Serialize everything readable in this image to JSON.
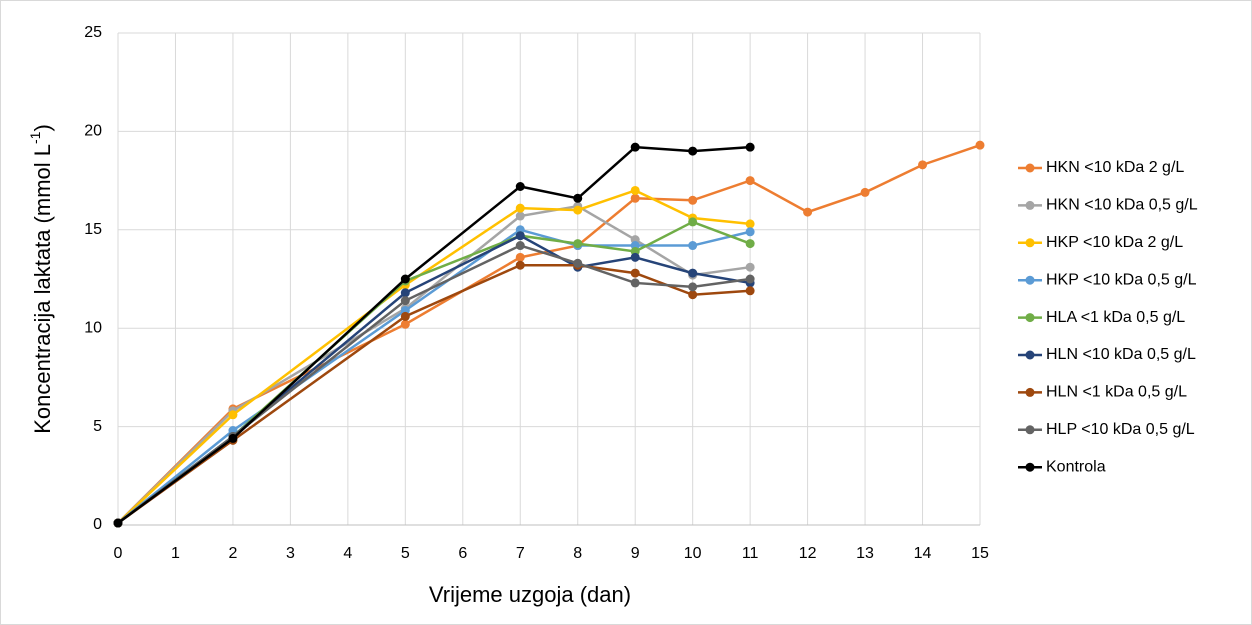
{
  "chart_data": {
    "type": "line",
    "xlabel": "Vrijeme uzgoja (dan)",
    "ylabel": [
      "Koncentracija laktata (mmol L",
      "-1",
      ")"
    ],
    "x": [
      0,
      2,
      5,
      7,
      8,
      9,
      10,
      11,
      12,
      13,
      14,
      15
    ],
    "xlim": [
      0,
      15
    ],
    "xticks": [
      0,
      1,
      2,
      3,
      4,
      5,
      6,
      7,
      8,
      9,
      10,
      11,
      12,
      13,
      14,
      15
    ],
    "ylim": [
      0,
      25
    ],
    "yticks": [
      0,
      5,
      10,
      15,
      20,
      25
    ],
    "grid": true,
    "legend": "right",
    "series": [
      {
        "name": "HKN <10 kDa 2 g/L",
        "color": "#ED7D31",
        "values": [
          0.1,
          5.9,
          10.2,
          13.6,
          14.2,
          16.6,
          16.5,
          17.5,
          15.9,
          16.9,
          18.3,
          19.3
        ]
      },
      {
        "name": "HKN <10 kDa 0,5 g/L",
        "color": "#A5A5A5",
        "values": [
          0.1,
          5.8,
          11.0,
          15.7,
          16.2,
          14.5,
          12.7,
          13.1,
          null,
          null,
          null,
          null
        ]
      },
      {
        "name": "HKP <10 kDa 2 g/L",
        "color": "#FFC000",
        "values": [
          0.1,
          5.6,
          12.2,
          16.1,
          16.0,
          17.0,
          15.6,
          15.3,
          null,
          null,
          null,
          null
        ]
      },
      {
        "name": "HKP <10 kDa 0,5 g/L",
        "color": "#5B9BD5",
        "values": [
          0.1,
          4.8,
          10.9,
          15.0,
          14.2,
          14.2,
          14.2,
          14.9,
          null,
          null,
          null,
          null
        ]
      },
      {
        "name": "HLA <1 kDa 0,5 g/L",
        "color": "#70AD47",
        "values": [
          0.1,
          4.5,
          12.4,
          14.7,
          14.3,
          13.9,
          15.4,
          14.3,
          null,
          null,
          null,
          null
        ]
      },
      {
        "name": "HLN <10 kDa 0,5 g/L",
        "color": "#264478",
        "values": [
          0.1,
          4.5,
          11.8,
          14.7,
          13.1,
          13.6,
          12.8,
          12.3,
          null,
          null,
          null,
          null
        ]
      },
      {
        "name": "HLN <1 kDa 0,5 g/L",
        "color": "#9E480E",
        "values": [
          0.1,
          4.3,
          10.6,
          13.2,
          13.2,
          12.8,
          11.7,
          11.9,
          null,
          null,
          null,
          null
        ]
      },
      {
        "name": "HLP <10 kDa 0,5 g/L",
        "color": "#636363",
        "values": [
          0.1,
          4.5,
          11.4,
          14.2,
          13.3,
          12.3,
          12.1,
          12.5,
          null,
          null,
          null,
          null
        ]
      },
      {
        "name": "Kontrola",
        "color": "#000000",
        "values": [
          0.1,
          4.4,
          12.5,
          17.2,
          16.6,
          19.2,
          19.0,
          19.2,
          null,
          null,
          null,
          null
        ]
      }
    ]
  }
}
